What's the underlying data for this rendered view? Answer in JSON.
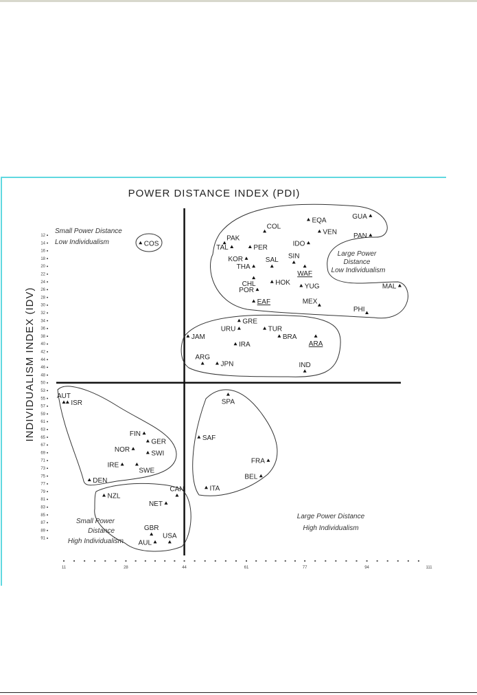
{
  "chart_data": {
    "type": "scatter",
    "title": "POWER DISTANCE INDEX (PDI)",
    "ylabel": "INDIVIDUALISM INDEX (IDV)",
    "xlabel": "",
    "x_ticks": [
      11,
      28,
      44,
      61,
      77,
      94,
      111
    ],
    "y_ticks": [
      12,
      14,
      16,
      18,
      20,
      22,
      24,
      26,
      28,
      30,
      32,
      34,
      36,
      38,
      40,
      42,
      44,
      46,
      48,
      50,
      53,
      55,
      57,
      59,
      61,
      63,
      65,
      67,
      69,
      71,
      73,
      75,
      77,
      79,
      81,
      83,
      85,
      87,
      89,
      91
    ],
    "xlim": [
      11,
      111
    ],
    "ylim": [
      91,
      6
    ],
    "divider": {
      "x": 44,
      "y": 50
    },
    "grid": false,
    "quadrant_labels": {
      "top_left": [
        "Small Power Distance",
        "Low Individualism"
      ],
      "top_right": [
        "Large Power",
        "Distance",
        "Low Individualism"
      ],
      "bottom_left": [
        "Small Power",
        "Distance",
        "High Individualism"
      ],
      "bottom_right": [
        "Large Power Distance",
        "High Individualism"
      ]
    },
    "points": [
      {
        "label": "COS",
        "x": 32,
        "y": 14
      },
      {
        "label": "EQA",
        "x": 78,
        "y": 8
      },
      {
        "label": "GUA",
        "x": 95,
        "y": 7
      },
      {
        "label": "COL",
        "x": 66,
        "y": 11
      },
      {
        "label": "VEN",
        "x": 81,
        "y": 11
      },
      {
        "label": "PAN",
        "x": 95,
        "y": 12
      },
      {
        "label": "IDO",
        "x": 78,
        "y": 14
      },
      {
        "label": "PAK",
        "x": 55,
        "y": 14
      },
      {
        "label": "TAL",
        "x": 57,
        "y": 15
      },
      {
        "label": "PER",
        "x": 62,
        "y": 15
      },
      {
        "label": "SIN",
        "x": 74,
        "y": 19
      },
      {
        "label": "KOR",
        "x": 61,
        "y": 18
      },
      {
        "label": "SAL",
        "x": 68,
        "y": 20
      },
      {
        "label": "WAF",
        "x": 77,
        "y": 20,
        "underlined": true
      },
      {
        "label": "THA",
        "x": 63,
        "y": 20
      },
      {
        "label": "CHL",
        "x": 63,
        "y": 23
      },
      {
        "label": "HOK",
        "x": 68,
        "y": 24
      },
      {
        "label": "YUG",
        "x": 76,
        "y": 25
      },
      {
        "label": "MAL",
        "x": 103,
        "y": 25
      },
      {
        "label": "POR",
        "x": 64,
        "y": 26
      },
      {
        "label": "EAF",
        "x": 63,
        "y": 29,
        "underlined": true
      },
      {
        "label": "MEX",
        "x": 81,
        "y": 30
      },
      {
        "label": "PHI",
        "x": 94,
        "y": 32
      },
      {
        "label": "GRE",
        "x": 59,
        "y": 34
      },
      {
        "label": "URU",
        "x": 59,
        "y": 36
      },
      {
        "label": "TUR",
        "x": 66,
        "y": 36
      },
      {
        "label": "JAM",
        "x": 45,
        "y": 38
      },
      {
        "label": "IRA",
        "x": 58,
        "y": 40
      },
      {
        "label": "BRA",
        "x": 70,
        "y": 38
      },
      {
        "label": "ARA",
        "x": 80,
        "y": 38,
        "underlined": true
      },
      {
        "label": "ARG",
        "x": 49,
        "y": 45
      },
      {
        "label": "JPN",
        "x": 53,
        "y": 45
      },
      {
        "label": "IND",
        "x": 77,
        "y": 47
      },
      {
        "label": "AUT",
        "x": 11,
        "y": 56
      },
      {
        "label": "ISR",
        "x": 12,
        "y": 56
      },
      {
        "label": "FIN",
        "x": 33,
        "y": 64
      },
      {
        "label": "GER",
        "x": 34,
        "y": 66
      },
      {
        "label": "NOR",
        "x": 30,
        "y": 68
      },
      {
        "label": "SWI",
        "x": 34,
        "y": 69
      },
      {
        "label": "IRE",
        "x": 27,
        "y": 72
      },
      {
        "label": "SWE",
        "x": 31,
        "y": 72
      },
      {
        "label": "DEN",
        "x": 18,
        "y": 76
      },
      {
        "label": "NZL",
        "x": 22,
        "y": 80
      },
      {
        "label": "CAN",
        "x": 42,
        "y": 80
      },
      {
        "label": "NET",
        "x": 39,
        "y": 82
      },
      {
        "label": "GBR",
        "x": 35,
        "y": 90
      },
      {
        "label": "AUL",
        "x": 36,
        "y": 92
      },
      {
        "label": "USA",
        "x": 40,
        "y": 92
      },
      {
        "label": "SPA",
        "x": 56,
        "y": 54
      },
      {
        "label": "SAF",
        "x": 48,
        "y": 65
      },
      {
        "label": "FRA",
        "x": 67,
        "y": 71
      },
      {
        "label": "BEL",
        "x": 65,
        "y": 75
      },
      {
        "label": "ITA",
        "x": 50,
        "y": 78
      }
    ]
  },
  "colors": {
    "frame": "#5fd8e0",
    "ink": "#222222"
  }
}
